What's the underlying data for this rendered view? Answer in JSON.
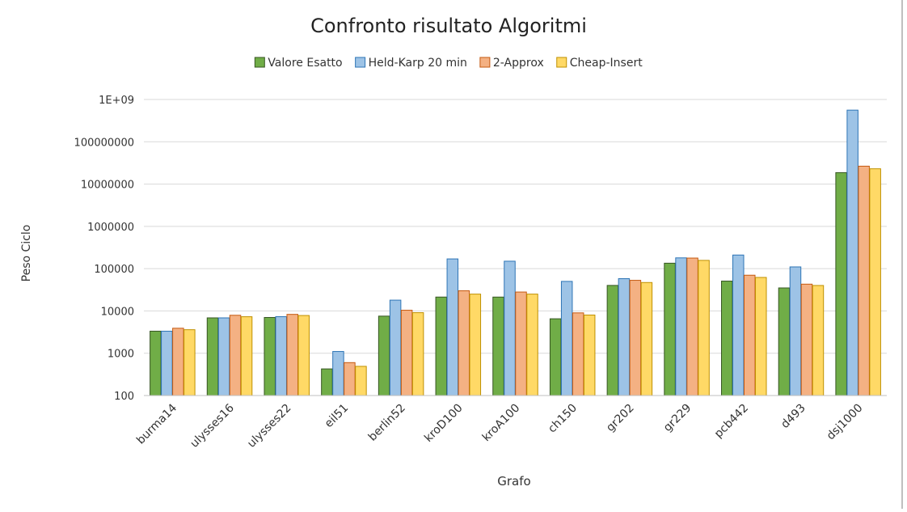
{
  "chart_data": {
    "type": "bar",
    "title": "Confronto risultato Algoritmi",
    "xlabel": "Grafo",
    "ylabel": "Peso Ciclo",
    "yscale": "log",
    "ylim": [
      100,
      1000000000
    ],
    "yticks": [
      100,
      1000,
      10000,
      100000,
      1000000,
      10000000,
      100000000,
      1000000000
    ],
    "ytick_labels": [
      "100",
      "1000",
      "10000",
      "100000",
      "1000000",
      "10000000",
      "100000000",
      "1E+09"
    ],
    "grid": true,
    "legend_position": "top",
    "categories": [
      "burma14",
      "ulysses16",
      "ulysses22",
      "eil51",
      "berlin52",
      "kroD100",
      "kroA100",
      "ch150",
      "gr202",
      "gr229",
      "pcb442",
      "d493",
      "dsj1000"
    ],
    "series": [
      {
        "name": "Valore Esatto",
        "color": "#70ad47",
        "edge": "#375623",
        "values": [
          3323,
          6859,
          7013,
          426,
          7542,
          21294,
          21282,
          6528,
          40160,
          134602,
          50778,
          35002,
          18659688
        ]
      },
      {
        "name": "Held-Karp 20 min",
        "color": "#9dc3e6",
        "edge": "#2e75b6",
        "values": [
          3323,
          6859,
          7320,
          1100,
          18000,
          170000,
          150000,
          50000,
          58000,
          180000,
          210000,
          110000,
          560000000
        ]
      },
      {
        "name": "2-Approx",
        "color": "#f4b183",
        "edge": "#c55a11",
        "values": [
          3900,
          7900,
          8300,
          600,
          10400,
          30000,
          28000,
          9000,
          53000,
          178000,
          70000,
          43000,
          26500000
        ]
      },
      {
        "name": "Cheap-Insert",
        "color": "#ffd966",
        "edge": "#bf9000",
        "values": [
          3600,
          7300,
          7800,
          490,
          9100,
          25000,
          25000,
          8000,
          47000,
          157000,
          62000,
          40000,
          23000000
        ]
      }
    ]
  }
}
